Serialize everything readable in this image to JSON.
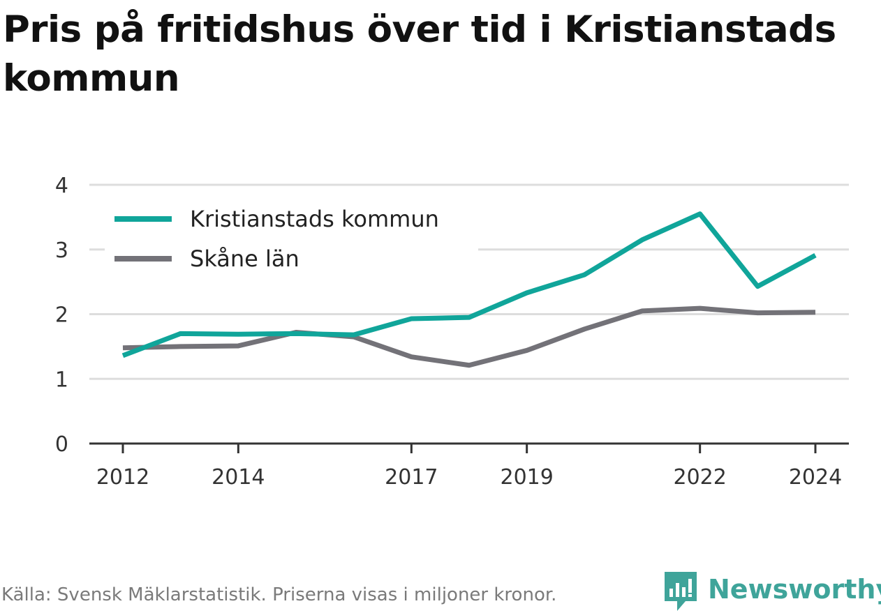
{
  "title": "Pris på fritidshus över tid i Kristianstads kommun",
  "footer": {
    "source": "Källa: Svensk Mäklarstatistik. Priserna visas i miljoner kronor."
  },
  "brand": {
    "name": "Newsworthy",
    "color": "#3fa49a"
  },
  "chart_data": {
    "type": "line",
    "x": [
      2012,
      2013,
      2014,
      2015,
      2016,
      2017,
      2018,
      2019,
      2020,
      2021,
      2022,
      2023,
      2024
    ],
    "x_tick_labels": [
      "2012",
      "2014",
      "2017",
      "2019",
      "2022",
      "2024"
    ],
    "y_tick_labels": [
      "0",
      "1",
      "2",
      "3",
      "4"
    ],
    "ylim": [
      0,
      4
    ],
    "grid": true,
    "legend_position": "top-left",
    "series": [
      {
        "name": "Kristianstads kommun",
        "color": "#10a59a",
        "values": [
          1.36,
          1.7,
          1.69,
          1.7,
          1.68,
          1.93,
          1.95,
          2.33,
          2.61,
          3.15,
          3.55,
          2.43,
          2.91
        ]
      },
      {
        "name": "Skåne län",
        "color": "#737278",
        "values": [
          1.48,
          1.5,
          1.51,
          1.72,
          1.65,
          1.34,
          1.21,
          1.44,
          1.77,
          2.05,
          2.09,
          2.02,
          2.03
        ]
      }
    ]
  }
}
